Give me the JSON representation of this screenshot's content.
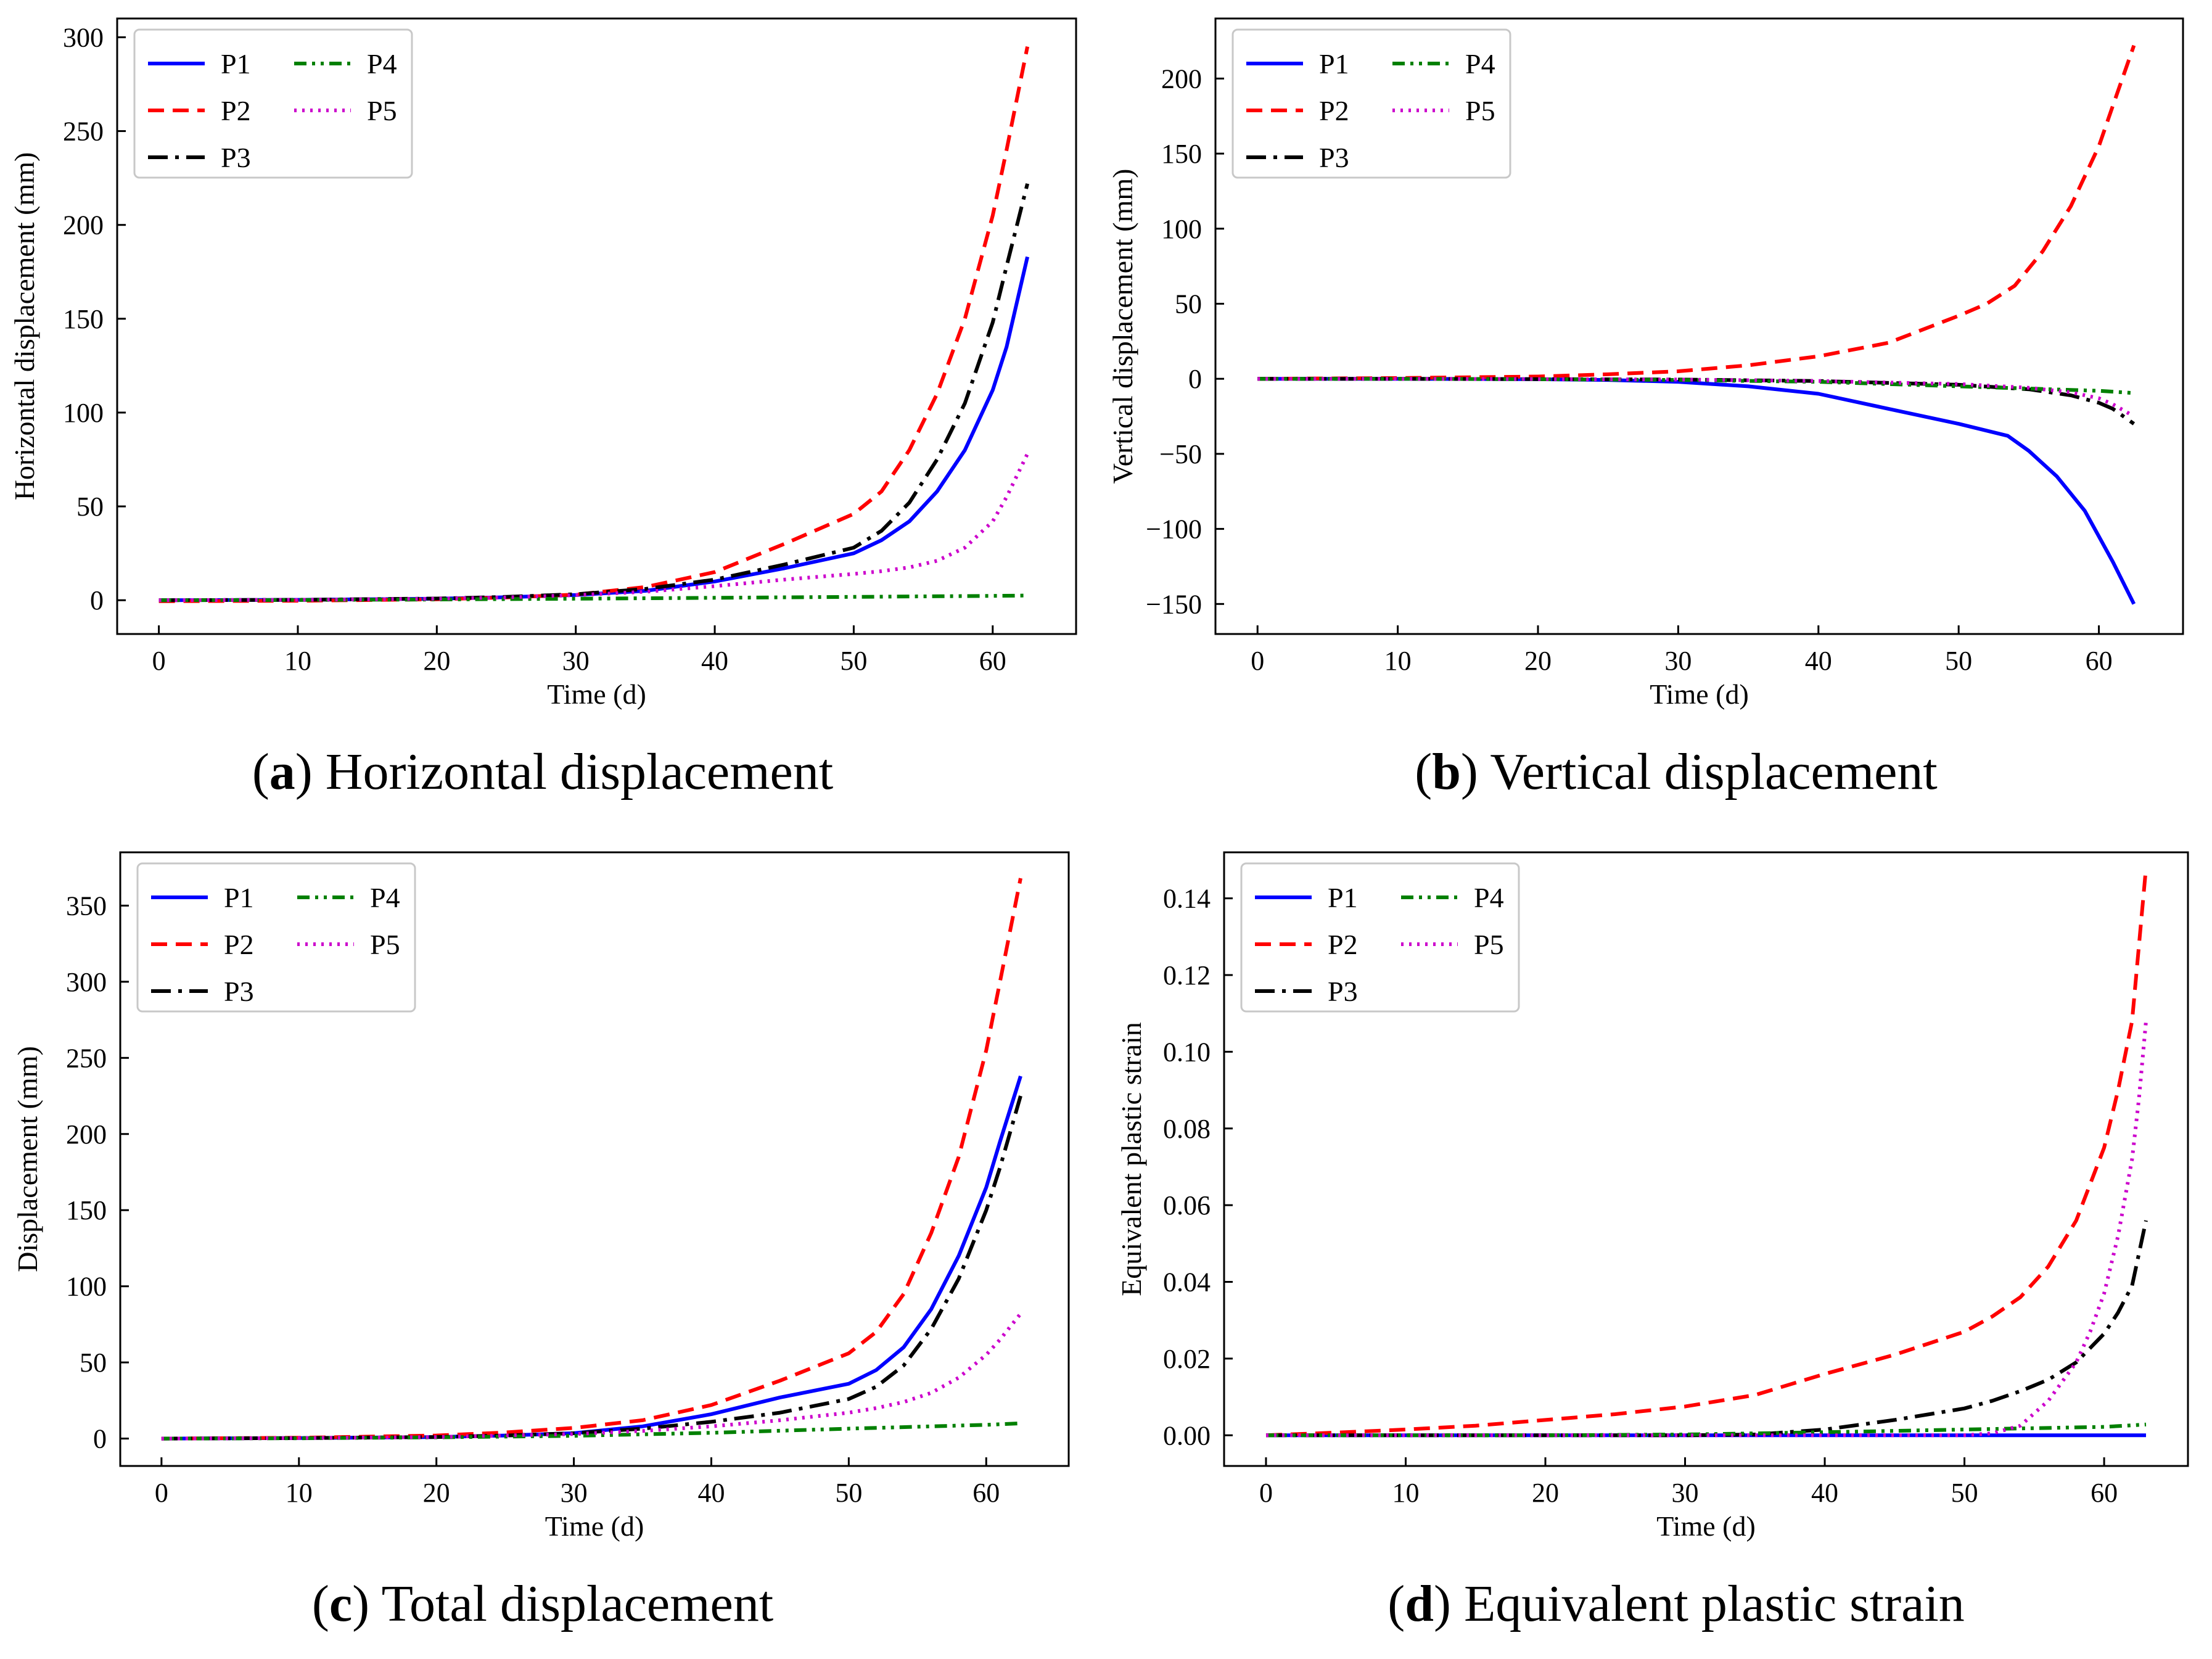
{
  "colors": {
    "P1": "#0000ff",
    "P2": "#ff0000",
    "P3": "#000000",
    "P4": "#008000",
    "P5": "#cc00cc"
  },
  "chart_data": [
    {
      "type": "line",
      "caption_letter": "a",
      "caption_text": "Horizontal displacement",
      "xlabel": "Time (d)",
      "ylabel": "Horizontal displacement (mm)",
      "xlim": [
        -3,
        66
      ],
      "ylim": [
        -18,
        310
      ],
      "xticks": [
        0,
        10,
        20,
        30,
        40,
        50,
        60
      ],
      "yticks": [
        0,
        50,
        100,
        150,
        200,
        250,
        300
      ],
      "legend_position": "top-left",
      "series": [
        {
          "name": "P1",
          "style": "solid",
          "x": [
            0,
            10,
            20,
            25,
            30,
            35,
            40,
            45,
            50,
            52,
            54,
            56,
            58,
            60,
            61,
            62.5
          ],
          "y": [
            0,
            0.2,
            0.8,
            1.6,
            2.8,
            5,
            10,
            17,
            25,
            32,
            42,
            58,
            80,
            112,
            135,
            183
          ]
        },
        {
          "name": "P2",
          "style": "dashed",
          "x": [
            0,
            10,
            20,
            25,
            30,
            35,
            40,
            45,
            50,
            52,
            54,
            56,
            58,
            60,
            61,
            62.5
          ],
          "y": [
            -0.5,
            -0.3,
            0.5,
            1.5,
            3,
            7,
            15,
            30,
            46,
            58,
            80,
            110,
            150,
            205,
            240,
            295
          ]
        },
        {
          "name": "P3",
          "style": "dashdot",
          "x": [
            0,
            10,
            20,
            25,
            30,
            35,
            40,
            45,
            50,
            52,
            54,
            56,
            58,
            60,
            61,
            62.5
          ],
          "y": [
            0,
            0.2,
            0.9,
            1.8,
            3.2,
            6,
            11,
            19,
            28,
            37,
            52,
            75,
            105,
            148,
            178,
            222
          ]
        },
        {
          "name": "P4",
          "style": "dashdotdot",
          "x": [
            0,
            10,
            20,
            30,
            40,
            50,
            60,
            62.5
          ],
          "y": [
            0,
            0.1,
            0.4,
            0.8,
            1.3,
            1.8,
            2.3,
            2.5
          ]
        },
        {
          "name": "P5",
          "style": "dotted",
          "x": [
            0,
            10,
            20,
            25,
            30,
            35,
            40,
            45,
            50,
            52,
            54,
            56,
            58,
            60,
            61,
            62.5
          ],
          "y": [
            0,
            0.2,
            0.8,
            1.5,
            2.7,
            4.5,
            7.5,
            11,
            14,
            15.5,
            17.5,
            21,
            28,
            42,
            55,
            78
          ]
        }
      ]
    },
    {
      "type": "line",
      "caption_letter": "b",
      "caption_text": "Vertical displacement",
      "xlabel": "Time (d)",
      "ylabel": "Vertical displacement (mm)",
      "xlim": [
        -3,
        66
      ],
      "ylim": [
        -170,
        240
      ],
      "xticks": [
        0,
        10,
        20,
        30,
        40,
        50,
        60
      ],
      "yticks": [
        -150,
        -100,
        -50,
        0,
        50,
        100,
        150,
        200
      ],
      "legend_position": "top-left",
      "series": [
        {
          "name": "P1",
          "style": "solid",
          "x": [
            0,
            10,
            20,
            25,
            30,
            35,
            40,
            45,
            50,
            53.5,
            55,
            57,
            59,
            60,
            61,
            62.5
          ],
          "y": [
            0,
            0,
            -0.3,
            -0.8,
            -2,
            -5,
            -10,
            -20,
            -30,
            -38,
            -48,
            -65,
            -88,
            -105,
            -122,
            -150
          ]
        },
        {
          "name": "P2",
          "style": "dashed",
          "x": [
            0,
            10,
            20,
            25,
            30,
            35,
            40,
            45,
            50,
            52,
            54,
            56,
            58,
            60,
            61,
            62.5
          ],
          "y": [
            0,
            0.5,
            1.5,
            3,
            5,
            9,
            15,
            24,
            42,
            50,
            62,
            85,
            115,
            155,
            182,
            222
          ]
        },
        {
          "name": "P3",
          "style": "dashdot",
          "x": [
            0,
            10,
            20,
            30,
            40,
            50,
            55,
            58,
            60,
            61,
            62.5
          ],
          "y": [
            0,
            0,
            -0.2,
            -0.5,
            -1.5,
            -4,
            -7,
            -11,
            -16,
            -20,
            -30
          ]
        },
        {
          "name": "P4",
          "style": "dashdotdot",
          "x": [
            0,
            10,
            20,
            30,
            40,
            50,
            60,
            62.5
          ],
          "y": [
            0,
            0,
            -0.3,
            -0.8,
            -2,
            -5,
            -8,
            -9.5
          ]
        },
        {
          "name": "P5",
          "style": "dotted",
          "x": [
            0,
            10,
            20,
            30,
            40,
            50,
            55,
            58,
            60,
            61,
            62.5
          ],
          "y": [
            0,
            0,
            -0.2,
            -0.5,
            -1.5,
            -3.5,
            -6,
            -9,
            -13,
            -17,
            -25
          ]
        }
      ]
    },
    {
      "type": "line",
      "caption_letter": "c",
      "caption_text": "Total displacement",
      "xlabel": "Time (d)",
      "ylabel": "Displacement (mm)",
      "xlim": [
        -3,
        66
      ],
      "ylim": [
        -18,
        385
      ],
      "xticks": [
        0,
        10,
        20,
        30,
        40,
        50,
        60
      ],
      "yticks": [
        0,
        50,
        100,
        150,
        200,
        250,
        300,
        350
      ],
      "legend_position": "top-left",
      "series": [
        {
          "name": "P1",
          "style": "solid",
          "x": [
            0,
            10,
            20,
            25,
            30,
            35,
            40,
            45,
            50,
            52,
            54,
            56,
            58,
            60,
            61,
            62.5
          ],
          "y": [
            0,
            0.3,
            1,
            2,
            3.5,
            8,
            16,
            27,
            36,
            45,
            60,
            85,
            120,
            165,
            195,
            238
          ]
        },
        {
          "name": "P2",
          "style": "dashed",
          "x": [
            0,
            10,
            20,
            25,
            30,
            35,
            40,
            45,
            50,
            52,
            54,
            56,
            58,
            60,
            61,
            62.5
          ],
          "y": [
            0,
            0.5,
            2,
            4,
            7,
            12,
            22,
            38,
            56,
            70,
            95,
            135,
            185,
            255,
            300,
            368
          ]
        },
        {
          "name": "P3",
          "style": "dashdot",
          "x": [
            0,
            10,
            20,
            25,
            30,
            35,
            40,
            45,
            50,
            52,
            54,
            56,
            58,
            60,
            61,
            62.5
          ],
          "y": [
            0,
            0.3,
            1,
            2,
            3.5,
            6.5,
            11,
            17,
            26,
            34,
            48,
            72,
            105,
            150,
            178,
            225
          ]
        },
        {
          "name": "P4",
          "style": "dashdotdot",
          "x": [
            0,
            10,
            20,
            30,
            40,
            50,
            60,
            62.5
          ],
          "y": [
            0,
            0.2,
            0.8,
            1.8,
            3.8,
            6.5,
            9,
            10
          ]
        },
        {
          "name": "P5",
          "style": "dotted",
          "x": [
            0,
            10,
            20,
            25,
            30,
            35,
            40,
            45,
            50,
            52,
            54,
            56,
            58,
            60,
            61,
            62.5
          ],
          "y": [
            0,
            0.3,
            1,
            2,
            3,
            5,
            8,
            12,
            17,
            20,
            24,
            30,
            40,
            55,
            65,
            82
          ]
        }
      ]
    },
    {
      "type": "line",
      "caption_letter": "d",
      "caption_text": "Equivalent plastic strain",
      "xlabel": "Time (d)",
      "ylabel": "Equivalent plastic strain",
      "xlim": [
        -3,
        66
      ],
      "ylim": [
        -0.008,
        0.152
      ],
      "xticks": [
        0,
        10,
        20,
        30,
        40,
        50,
        60
      ],
      "yticks": [
        0.0,
        0.02,
        0.04,
        0.06,
        0.08,
        0.1,
        0.12,
        0.14
      ],
      "ytick_decimals": 2,
      "legend_position": "top-left",
      "series": [
        {
          "name": "P1",
          "style": "solid",
          "x": [
            0,
            63
          ],
          "y": [
            0,
            0
          ]
        },
        {
          "name": "P2",
          "style": "dashed",
          "x": [
            0,
            5,
            10,
            15,
            20,
            25,
            30,
            35,
            40,
            45,
            50,
            52,
            54,
            56,
            58,
            60,
            61,
            62,
            63
          ],
          "y": [
            0,
            0.0007,
            0.0015,
            0.0025,
            0.004,
            0.0055,
            0.0075,
            0.0105,
            0.016,
            0.021,
            0.027,
            0.031,
            0.036,
            0.044,
            0.056,
            0.075,
            0.09,
            0.108,
            0.148
          ]
        },
        {
          "name": "P3",
          "style": "dashdot",
          "x": [
            0,
            30,
            35,
            40,
            45,
            50,
            52,
            54,
            56,
            58,
            60,
            61,
            62,
            63
          ],
          "y": [
            0,
            0,
            0.0002,
            0.0015,
            0.004,
            0.007,
            0.009,
            0.0115,
            0.0145,
            0.019,
            0.0265,
            0.032,
            0.039,
            0.056
          ]
        },
        {
          "name": "P4",
          "style": "dashdotdot",
          "x": [
            0,
            20,
            30,
            40,
            50,
            60,
            63
          ],
          "y": [
            0,
            0,
            0.0002,
            0.0008,
            0.0015,
            0.0022,
            0.0028
          ]
        },
        {
          "name": "P5",
          "style": "dotted",
          "x": [
            0,
            50,
            52,
            54,
            56,
            58,
            59,
            60,
            61,
            62,
            62.5,
            63
          ],
          "y": [
            0,
            0,
            0.0005,
            0.0025,
            0.009,
            0.019,
            0.027,
            0.037,
            0.052,
            0.072,
            0.088,
            0.108
          ]
        }
      ]
    }
  ]
}
